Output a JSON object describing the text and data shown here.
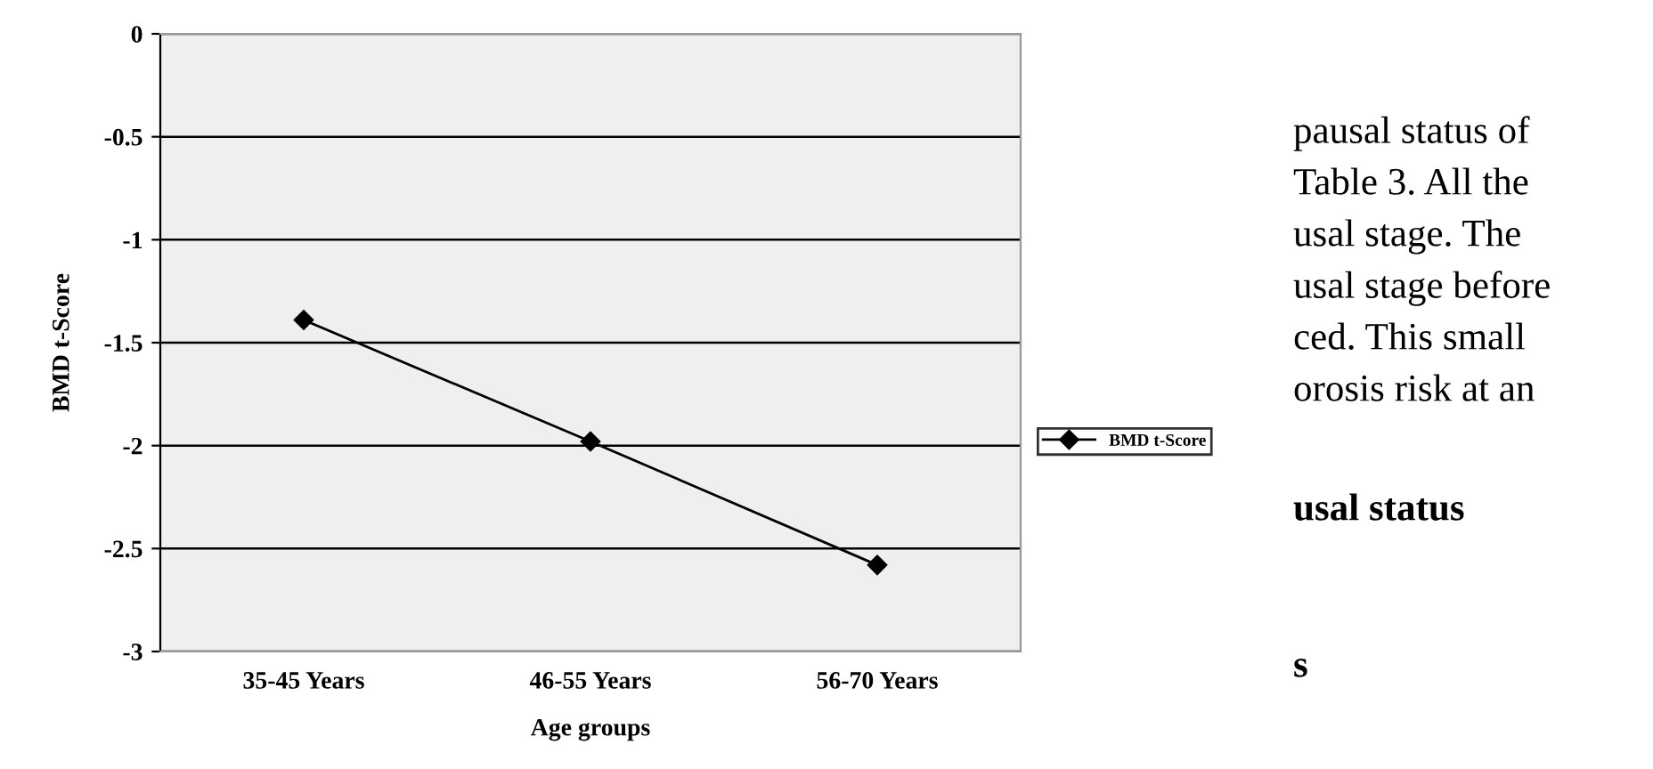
{
  "chart_data": {
    "type": "line",
    "xlabel": "Age groups",
    "ylabel": "BMD t-Score",
    "categories": [
      "35-45 Years",
      "46-55 Years",
      "56-70 Years"
    ],
    "series": [
      {
        "name": "BMD t-Score",
        "color": "#000000",
        "values": [
          -1.39,
          -1.98,
          -2.58
        ]
      }
    ],
    "ylim": [
      -3,
      0
    ],
    "yticks": [
      {
        "value": -3,
        "label": "-3"
      },
      {
        "value": -2.5,
        "label": "-2.5"
      },
      {
        "value": -2,
        "label": "-2"
      },
      {
        "value": -1.5,
        "label": "-1.5"
      },
      {
        "value": -1,
        "label": "-1"
      },
      {
        "value": -0.5,
        "label": "-0.5"
      },
      {
        "value": 0,
        "label": "0"
      }
    ],
    "grid": "y",
    "legend": "right",
    "marker": "diamond",
    "line_style": "solid",
    "annotations": [
      "pausal status of",
      "Table 3. All the",
      "usal stage. The",
      "usal stage before",
      "ced. This small",
      "orosis risk at an",
      "usal status",
      "s"
    ]
  }
}
